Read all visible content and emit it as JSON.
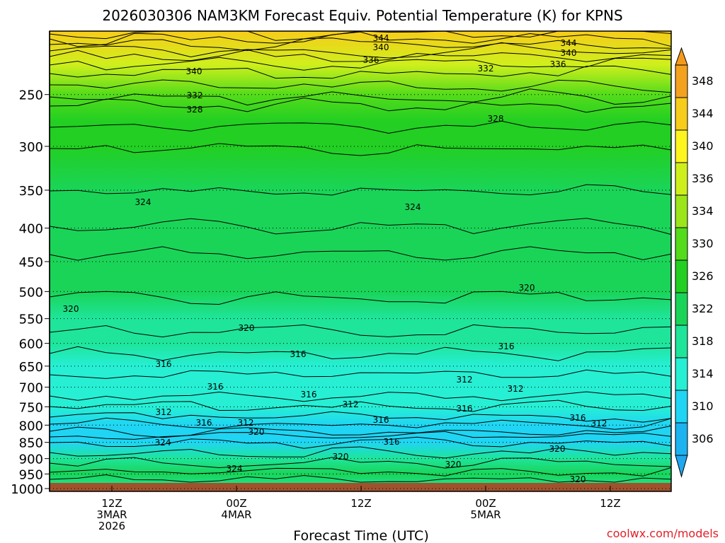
{
  "chart_data": {
    "type": "heatmap",
    "title": "2026030306 NAM3KM Forecast Equiv. Potential Temperature (K) for KPNS",
    "xlabel": "Forecast Time (UTC)",
    "ylabel": "",
    "x_ticks": [
      {
        "lines": [
          "12Z",
          "3MAR",
          "2026"
        ]
      },
      {
        "lines": [
          "00Z",
          "4MAR"
        ]
      },
      {
        "lines": [
          "12Z"
        ]
      },
      {
        "lines": [
          "00Z",
          "5MAR"
        ]
      },
      {
        "lines": [
          "12Z"
        ]
      }
    ],
    "y_ticks": [
      250,
      300,
      350,
      400,
      450,
      500,
      550,
      600,
      650,
      700,
      750,
      800,
      850,
      900,
      950,
      1000
    ],
    "ylim": [
      1010,
      200
    ],
    "colorbar": {
      "labels": [
        348,
        344,
        340,
        336,
        334,
        330,
        326,
        322,
        318,
        314,
        310,
        306
      ],
      "colors": [
        "#f3a21f",
        "#f8cc1a",
        "#fff51e",
        "#cfef1c",
        "#9be51a",
        "#54dc1a",
        "#22cf22",
        "#1ad458",
        "#1ee59a",
        "#26efd4",
        "#1fd5f3",
        "#1cb3f0"
      ]
    },
    "levels": [
      {
        "p": 200,
        "theta": 346
      },
      {
        "p": 225,
        "theta": 338
      },
      {
        "p": 250,
        "theta": 333
      },
      {
        "p": 275,
        "theta": 329
      },
      {
        "p": 300,
        "theta": 327
      },
      {
        "p": 350,
        "theta": 325
      },
      {
        "p": 400,
        "theta": 324
      },
      {
        "p": 450,
        "theta": 323
      },
      {
        "p": 500,
        "theta": 322
      },
      {
        "p": 550,
        "theta": 321
      },
      {
        "p": 600,
        "theta": 319
      },
      {
        "p": 650,
        "theta": 317
      },
      {
        "p": 700,
        "theta": 316
      },
      {
        "p": 750,
        "theta": 314
      },
      {
        "p": 800,
        "theta": 312
      },
      {
        "p": 850,
        "theta": 311
      },
      {
        "p": 900,
        "theta": 318
      },
      {
        "p": 950,
        "theta": 324
      },
      {
        "p": 1000,
        "theta": 320
      }
    ],
    "contour_labels": [
      {
        "text": "344"
      },
      {
        "text": "340"
      },
      {
        "text": "336"
      },
      {
        "text": "344"
      },
      {
        "text": "340"
      },
      {
        "text": "336"
      },
      {
        "text": "340"
      },
      {
        "text": "332"
      },
      {
        "text": "332"
      },
      {
        "text": "328"
      },
      {
        "text": "328"
      },
      {
        "text": "324"
      },
      {
        "text": "324"
      },
      {
        "text": "320"
      },
      {
        "text": "320"
      },
      {
        "text": "320"
      },
      {
        "text": "316"
      },
      {
        "text": "316"
      },
      {
        "text": "316"
      },
      {
        "text": "316"
      },
      {
        "text": "316"
      },
      {
        "text": "312"
      },
      {
        "text": "312"
      },
      {
        "text": "316"
      },
      {
        "text": "312"
      },
      {
        "text": "316"
      },
      {
        "text": "312"
      },
      {
        "text": "312"
      },
      {
        "text": "316"
      },
      {
        "text": "320"
      },
      {
        "text": "316"
      },
      {
        "text": "312"
      },
      {
        "text": "324"
      },
      {
        "text": "320"
      },
      {
        "text": "320"
      },
      {
        "text": "324"
      },
      {
        "text": "320"
      },
      {
        "text": "320"
      },
      {
        "text": "316"
      }
    ]
  },
  "credit": "coolwx.com/models"
}
